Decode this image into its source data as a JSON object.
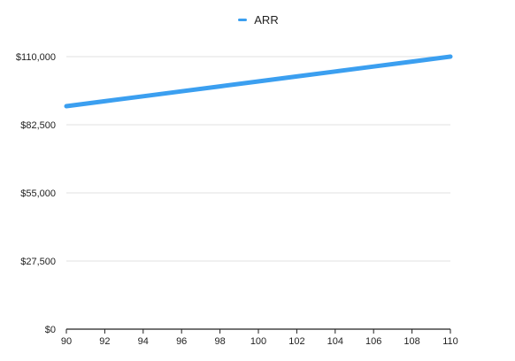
{
  "chart_data": {
    "type": "line",
    "x": [
      90,
      92,
      94,
      96,
      98,
      100,
      102,
      104,
      106,
      108,
      110
    ],
    "series": [
      {
        "name": "ARR",
        "color": "#3b9ff0",
        "values": [
          90000,
          92000,
          94000,
          96000,
          98000,
          100000,
          102000,
          104000,
          106000,
          108000,
          110000
        ]
      }
    ],
    "xticks": [
      "90",
      "92",
      "94",
      "96",
      "98",
      "100",
      "102",
      "104",
      "106",
      "108",
      "110"
    ],
    "yticks": [
      {
        "value": 0,
        "label": "$0"
      },
      {
        "value": 27500,
        "label": "$27,500"
      },
      {
        "value": 55000,
        "label": "$55,000"
      },
      {
        "value": 82500,
        "label": "$82,500"
      },
      {
        "value": 110000,
        "label": "$110,000"
      }
    ],
    "xlim": [
      90,
      110
    ],
    "ylim": [
      0,
      110000
    ],
    "grid": true,
    "legend_position": "top-center",
    "title": "",
    "xlabel": "",
    "ylabel": ""
  }
}
